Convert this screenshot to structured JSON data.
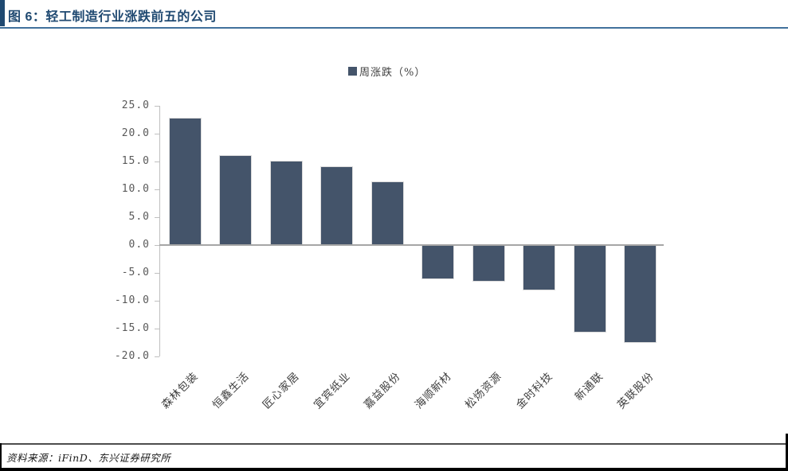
{
  "figure": {
    "title": "图 6：轻工制造行业涨跌前五的公司",
    "source_note": "资料来源：iFinD、东兴证券研究所"
  },
  "chart_data": {
    "type": "bar",
    "title": "",
    "series_name": "周涨跌（%）",
    "legend_position": "top-center",
    "categories": [
      "森林包装",
      "恒鑫生活",
      "匠心家居",
      "宜宾纸业",
      "嘉益股份",
      "海顺新材",
      "松炀资源",
      "金时科技",
      "新通联",
      "英联股份"
    ],
    "values": [
      22.8,
      16.1,
      15.2,
      14.1,
      11.5,
      -6.1,
      -6.5,
      -8.2,
      -15.7,
      -17.6
    ],
    "xlabel": "",
    "ylabel": "",
    "ylim": [
      -20,
      25
    ],
    "yticks": [
      25.0,
      20.0,
      15.0,
      10.0,
      5.0,
      0.0,
      -5.0,
      -10.0,
      -15.0,
      -20.0
    ],
    "grid": false
  },
  "colors": {
    "title_text": "#1F4971",
    "accent_bar": "#1F4971",
    "title_underline": "#41719C",
    "bar_fill": "#44546A",
    "bar_border": "#DCDCDC",
    "axis_line": "#BFBFBF",
    "baseline": "#A6A6A6",
    "ytick_text": "#595959",
    "xlabel_text": "#404040",
    "legend_text": "#3F3F3F",
    "footer_text": "#1A1A1A"
  }
}
